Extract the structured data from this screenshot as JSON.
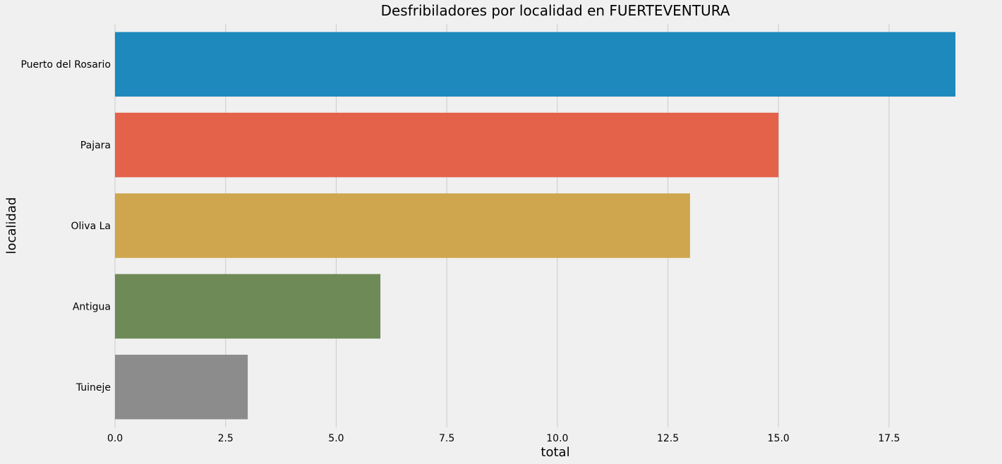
{
  "chart_data": {
    "type": "bar",
    "orientation": "horizontal",
    "title": "Desfribiladores por localidad en FUERTEVENTURA",
    "xlabel": "total",
    "ylabel": "localidad",
    "categories": [
      "Puerto del Rosario",
      "Pajara",
      "Oliva La",
      "Antigua",
      "Tuineje"
    ],
    "values": [
      19,
      15,
      13,
      6,
      3
    ],
    "colors": [
      "#1d89bc",
      "#e4624a",
      "#cfa64e",
      "#6e8a57",
      "#8c8c8c"
    ],
    "xlim": [
      0,
      19
    ],
    "xticks": [
      0.0,
      2.5,
      5.0,
      7.5,
      10.0,
      12.5,
      15.0,
      17.5
    ],
    "xtick_labels": [
      "0.0",
      "2.5",
      "5.0",
      "7.5",
      "10.0",
      "12.5",
      "15.0",
      "17.5"
    ],
    "grid": "vertical",
    "legend": "none"
  }
}
